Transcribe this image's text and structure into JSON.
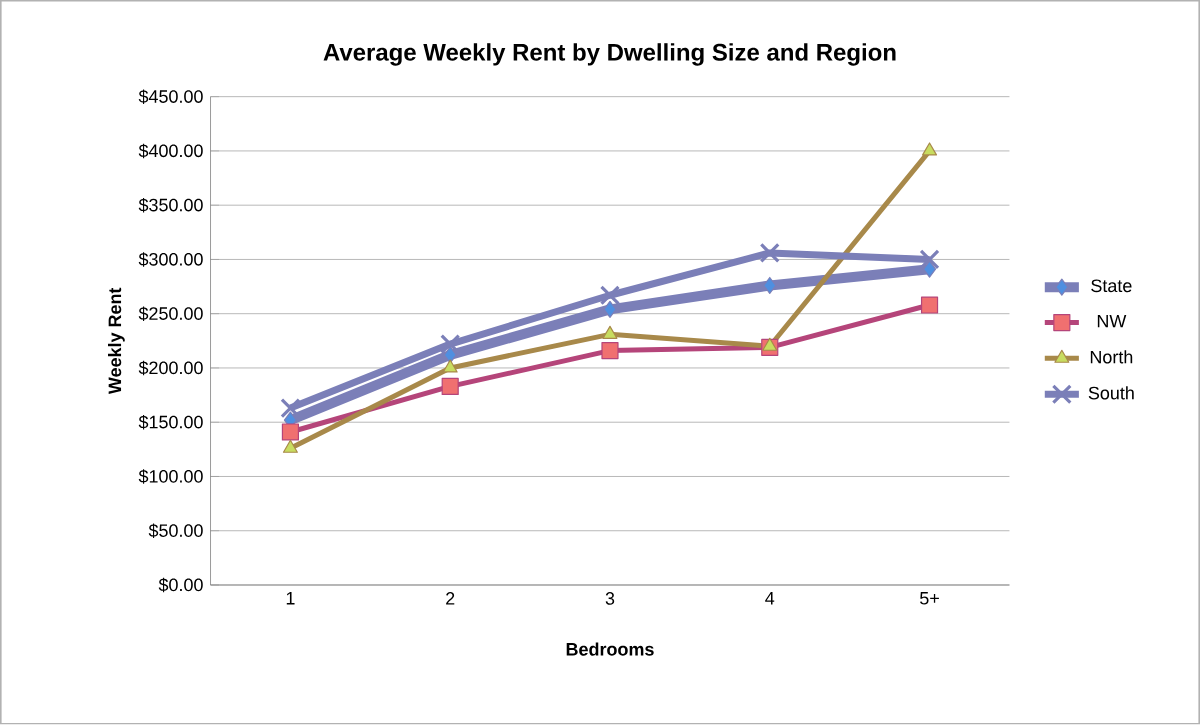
{
  "chart_data": {
    "type": "line",
    "title": "Average Weekly Rent by Dwelling Size and Region",
    "xlabel": "Bedrooms",
    "ylabel": "Weekly Rent",
    "categories": [
      "1",
      "2",
      "3",
      "4",
      "5+"
    ],
    "series": [
      {
        "name": "State",
        "color": "#7b7fb8",
        "marker": "diamond",
        "values": [
          152,
          212,
          254,
          276,
          291
        ]
      },
      {
        "name": "NW",
        "color": "#b5457a",
        "marker": "square",
        "values": [
          141,
          183,
          216,
          219,
          258
        ]
      },
      {
        "name": "North",
        "color": "#a8894a",
        "marker": "triangle",
        "values": [
          126,
          200,
          231,
          220,
          400
        ]
      },
      {
        "name": "South",
        "color": "#7b7fb8",
        "marker": "cross",
        "values": [
          163,
          222,
          267,
          306,
          300
        ]
      }
    ],
    "ylim": [
      0,
      450
    ],
    "yticks": [
      {
        "value": 0,
        "label": "$0.00"
      },
      {
        "value": 50,
        "label": "$50.00"
      },
      {
        "value": 100,
        "label": "$100.00"
      },
      {
        "value": 150,
        "label": "$150.00"
      },
      {
        "value": 200,
        "label": "$200.00"
      },
      {
        "value": 250,
        "label": "$250.00"
      },
      {
        "value": 300,
        "label": "$300.00"
      },
      {
        "value": 350,
        "label": "$350.00"
      },
      {
        "value": 400,
        "label": "$400.00"
      },
      {
        "value": 450,
        "label": "$450.00"
      }
    ],
    "grid": "y",
    "legend": "right",
    "line_style": "solid"
  }
}
